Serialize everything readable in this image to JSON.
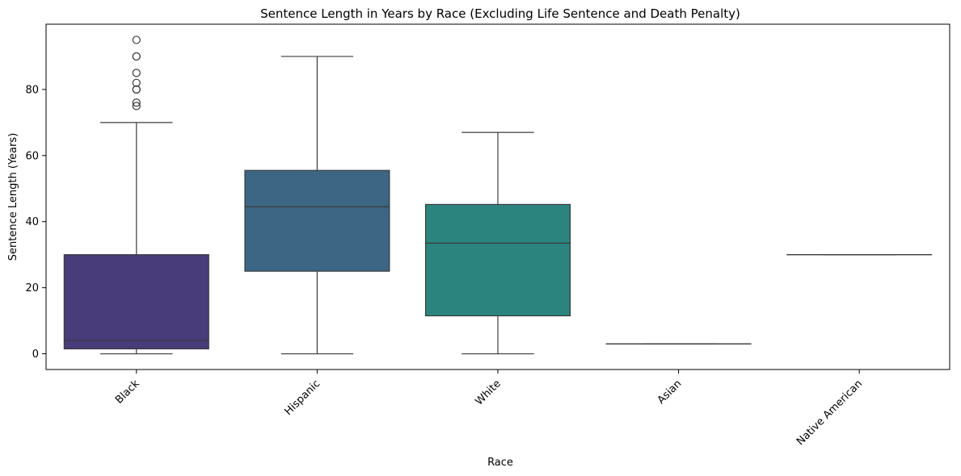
{
  "chart_data": {
    "type": "box",
    "title": "Sentence Length in Years by Race (Excluding Life Sentence and Death Penalty)",
    "xlabel": "Race",
    "ylabel": "Sentence Length (Years)",
    "ylim": [
      -4.75,
      99.75
    ],
    "yticks": [
      0,
      20,
      40,
      60,
      80
    ],
    "grid": false,
    "legend": "none",
    "categories": [
      "Black",
      "Hispanic",
      "White",
      "Asian",
      "Native American"
    ],
    "boxes": [
      {
        "category": "Black",
        "whisker_low": 0,
        "q1": 1.5,
        "median": 4,
        "q3": 30,
        "whisker_high": 70,
        "outliers": [
          75,
          76,
          80,
          80,
          82,
          85,
          90,
          90,
          95
        ],
        "color": "#483d7a"
      },
      {
        "category": "Hispanic",
        "whisker_low": 0,
        "q1": 25,
        "median": 44.5,
        "q3": 55.5,
        "whisker_high": 90,
        "outliers": [],
        "color": "#3c6684"
      },
      {
        "category": "White",
        "whisker_low": 0,
        "q1": 11.5,
        "median": 33.5,
        "q3": 45.2,
        "whisker_high": 67,
        "outliers": [],
        "color": "#2b857e"
      },
      {
        "category": "Asian",
        "whisker_low": 3,
        "q1": 3,
        "median": 3,
        "q3": 3,
        "whisker_high": 3,
        "outliers": [],
        "color": "#34a27a"
      },
      {
        "category": "Native American",
        "whisker_low": 30,
        "q1": 30,
        "median": 30,
        "q3": 30,
        "whisker_high": 30,
        "outliers": [],
        "color": "#5ebc64"
      }
    ]
  }
}
